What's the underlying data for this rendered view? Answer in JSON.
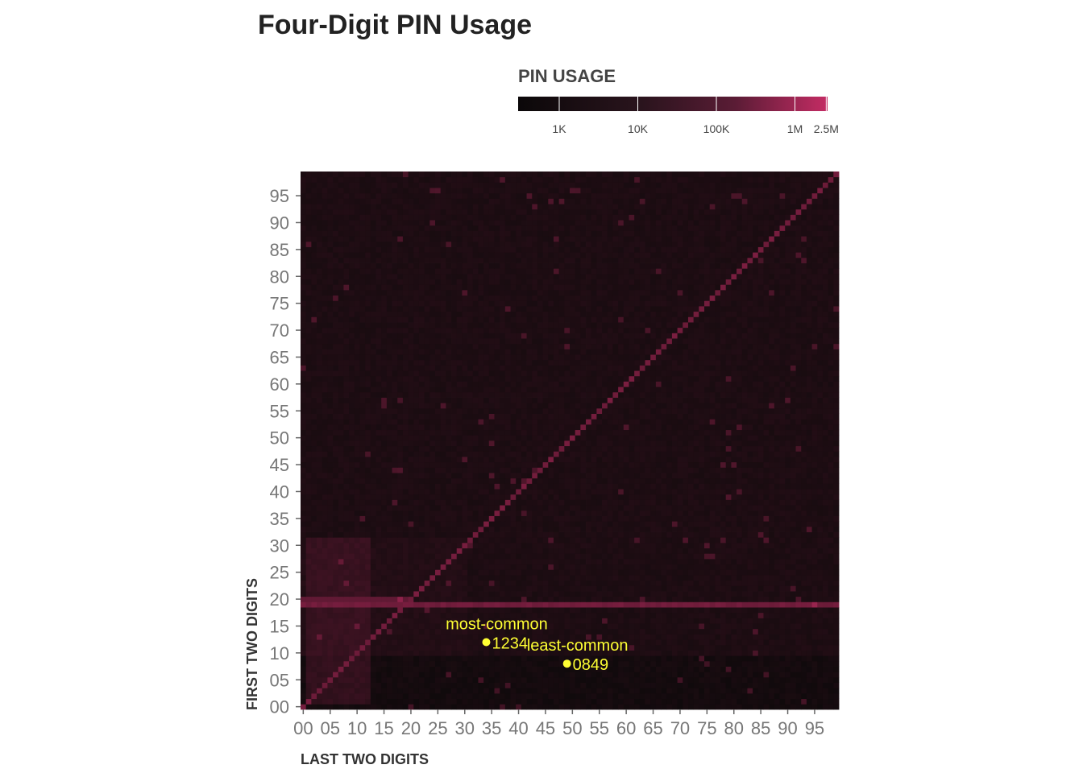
{
  "chart_data": {
    "type": "heatmap",
    "title": "Four-Digit PIN Usage",
    "xlabel": "LAST TWO DIGITS",
    "ylabel": "FIRST TWO DIGITS",
    "x_range": [
      0,
      99
    ],
    "y_range": [
      0,
      99
    ],
    "x_ticks": [
      "00",
      "05",
      "10",
      "15",
      "20",
      "25",
      "30",
      "35",
      "40",
      "45",
      "50",
      "55",
      "60",
      "65",
      "70",
      "75",
      "80",
      "85",
      "90",
      "95"
    ],
    "y_ticks": [
      "00",
      "05",
      "10",
      "15",
      "20",
      "25",
      "30",
      "35",
      "40",
      "45",
      "50",
      "55",
      "60",
      "65",
      "70",
      "75",
      "80",
      "85",
      "90",
      "95"
    ],
    "color_scale": {
      "title": "PIN USAGE",
      "scale": "log",
      "ticks": [
        {
          "label": "1K",
          "value": 1000
        },
        {
          "label": "10K",
          "value": 10000
        },
        {
          "label": "100K",
          "value": 100000
        },
        {
          "label": "1M",
          "value": 1000000
        },
        {
          "label": "2.5M",
          "value": 2500000
        }
      ],
      "low_color": "#000000",
      "high_color": "#c42c64"
    },
    "annotations": [
      {
        "label": "most-common",
        "pin": "1234",
        "x": 34,
        "y": 12
      },
      {
        "label": "least-common",
        "pin": "0849",
        "x": 49,
        "y": 8
      }
    ],
    "notable_patterns": [
      {
        "name": "repeated pairs",
        "description": "first two digits equal last two digits",
        "relative_level": "high"
      },
      {
        "name": "first two digits 19",
        "description": "year-like PINs 19xx",
        "relative_level": "high"
      },
      {
        "name": "birthday block",
        "description": "first 01-31, last 01-12",
        "relative_level": "elevated"
      },
      {
        "name": "first digit 0",
        "description": "PINs 0000-0999",
        "relative_level": "low"
      }
    ],
    "grid": false
  },
  "colors": {
    "annotation": "#ffff33",
    "heat_high": "#c42c64",
    "heat_low": "#000000"
  }
}
